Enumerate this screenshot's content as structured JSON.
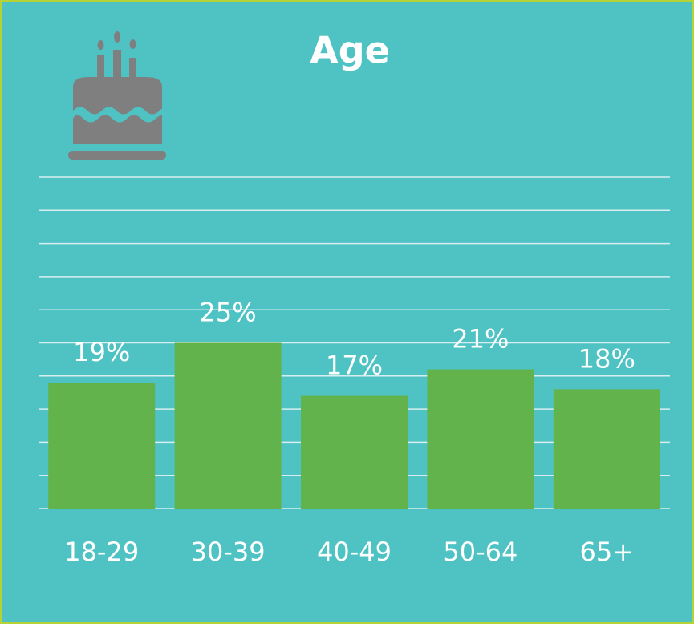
{
  "chart_data": {
    "type": "bar",
    "title": "Age",
    "categories": [
      "18-29",
      "30-39",
      "40-49",
      "50-64",
      "65+"
    ],
    "values": [
      19,
      25,
      17,
      21,
      18
    ],
    "value_labels": [
      "19%",
      "25%",
      "17%",
      "21%",
      "18%"
    ],
    "color": "#62b34b",
    "ylim": [
      0,
      50
    ],
    "yticks": [
      0,
      5,
      10,
      15,
      20,
      25,
      30,
      35,
      40,
      45,
      50
    ],
    "grid": true
  }
}
